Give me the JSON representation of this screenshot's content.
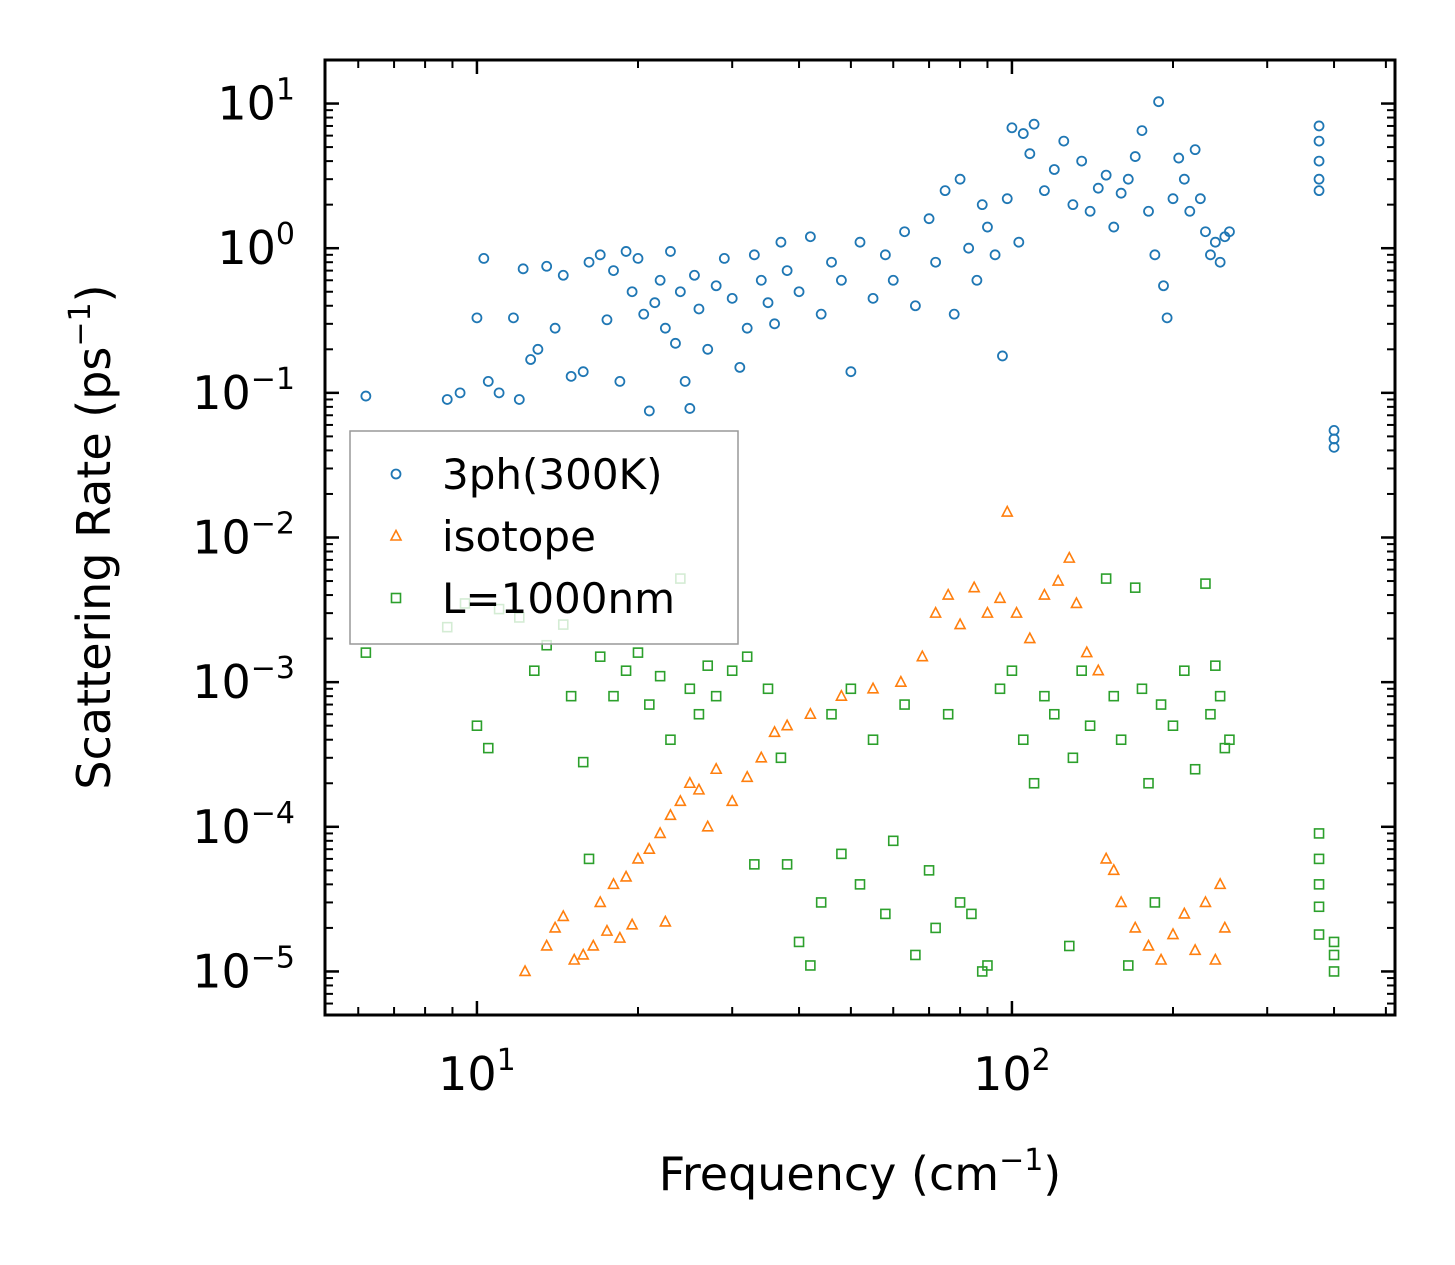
{
  "chart_data": {
    "type": "scatter",
    "title": "",
    "xlabel": "Frequency (cm",
    "xlabel_sup": "−1",
    "xlabel_close": ")",
    "ylabel": "Scattering Rate (ps",
    "ylabel_sup": "−1",
    "ylabel_close": ")",
    "xscale": "log",
    "yscale": "log",
    "xlim": [
      5.2,
      520
    ],
    "ylim": [
      5e-06,
      20
    ],
    "x_ticks": [
      {
        "value": 10,
        "base": "10",
        "exp": "1"
      },
      {
        "value": 100,
        "base": "10",
        "exp": "2"
      }
    ],
    "y_ticks": [
      {
        "value": 10,
        "base": "10",
        "exp": "1"
      },
      {
        "value": 1,
        "base": "10",
        "exp": "0"
      },
      {
        "value": 0.1,
        "base": "10",
        "exp": "−1"
      },
      {
        "value": 0.01,
        "base": "10",
        "exp": "−2"
      },
      {
        "value": 0.001,
        "base": "10",
        "exp": "−3"
      },
      {
        "value": 0.0001,
        "base": "10",
        "exp": "−4"
      },
      {
        "value": 1e-05,
        "base": "10",
        "exp": "−5"
      }
    ],
    "legend_position": "center-left",
    "series": [
      {
        "name": "3ph(300K)",
        "marker": "circle",
        "color": "#1f77b4",
        "points": [
          [
            6.2,
            0.095
          ],
          [
            8.8,
            0.09
          ],
          [
            9.3,
            0.1
          ],
          [
            10.0,
            0.33
          ],
          [
            10.5,
            0.12
          ],
          [
            11.0,
            0.1
          ],
          [
            12.0,
            0.09
          ],
          [
            10.3,
            0.85
          ],
          [
            11.7,
            0.33
          ],
          [
            12.2,
            0.72
          ],
          [
            12.6,
            0.17
          ],
          [
            13.0,
            0.2
          ],
          [
            13.5,
            0.75
          ],
          [
            14.0,
            0.28
          ],
          [
            14.5,
            0.65
          ],
          [
            15.0,
            0.13
          ],
          [
            15.8,
            0.14
          ],
          [
            16.2,
            0.8
          ],
          [
            17.0,
            0.9
          ],
          [
            17.5,
            0.32
          ],
          [
            18.0,
            0.7
          ],
          [
            18.5,
            0.12
          ],
          [
            19.0,
            0.95
          ],
          [
            19.5,
            0.5
          ],
          [
            20.0,
            0.85
          ],
          [
            20.5,
            0.35
          ],
          [
            21.0,
            0.075
          ],
          [
            21.5,
            0.42
          ],
          [
            22.0,
            0.6
          ],
          [
            22.5,
            0.28
          ],
          [
            23.0,
            0.95
          ],
          [
            23.5,
            0.22
          ],
          [
            24.0,
            0.5
          ],
          [
            24.5,
            0.12
          ],
          [
            25.0,
            0.078
          ],
          [
            25.5,
            0.65
          ],
          [
            26.0,
            0.38
          ],
          [
            27.0,
            0.2
          ],
          [
            28.0,
            0.55
          ],
          [
            29.0,
            0.85
          ],
          [
            30.0,
            0.45
          ],
          [
            31.0,
            0.15
          ],
          [
            32.0,
            0.28
          ],
          [
            33.0,
            0.9
          ],
          [
            34.0,
            0.6
          ],
          [
            35.0,
            0.42
          ],
          [
            36.0,
            0.3
          ],
          [
            37.0,
            1.1
          ],
          [
            38.0,
            0.7
          ],
          [
            40.0,
            0.5
          ],
          [
            42.0,
            1.2
          ],
          [
            44.0,
            0.35
          ],
          [
            46.0,
            0.8
          ],
          [
            48.0,
            0.6
          ],
          [
            50.0,
            0.14
          ],
          [
            52.0,
            1.1
          ],
          [
            55.0,
            0.45
          ],
          [
            58.0,
            0.9
          ],
          [
            60.0,
            0.6
          ],
          [
            63.0,
            1.3
          ],
          [
            66.0,
            0.4
          ],
          [
            70.0,
            1.6
          ],
          [
            72.0,
            0.8
          ],
          [
            75.0,
            2.5
          ],
          [
            78.0,
            0.35
          ],
          [
            80.0,
            3.0
          ],
          [
            83.0,
            1.0
          ],
          [
            86.0,
            0.6
          ],
          [
            88.0,
            2.0
          ],
          [
            90.0,
            1.4
          ],
          [
            93.0,
            0.9
          ],
          [
            96.0,
            0.18
          ],
          [
            98.0,
            2.2
          ],
          [
            100.0,
            6.8
          ],
          [
            103.0,
            1.1
          ],
          [
            105.0,
            6.2
          ],
          [
            108.0,
            4.5
          ],
          [
            110.0,
            7.2
          ],
          [
            115.0,
            2.5
          ],
          [
            120.0,
            3.5
          ],
          [
            125.0,
            5.5
          ],
          [
            130.0,
            2.0
          ],
          [
            135.0,
            4.0
          ],
          [
            140.0,
            1.8
          ],
          [
            145.0,
            2.6
          ],
          [
            150.0,
            3.2
          ],
          [
            155.0,
            1.4
          ],
          [
            160.0,
            2.4
          ],
          [
            165.0,
            3.0
          ],
          [
            170.0,
            4.3
          ],
          [
            175.0,
            6.5
          ],
          [
            180.0,
            1.8
          ],
          [
            185.0,
            0.9
          ],
          [
            188.0,
            10.3
          ],
          [
            192.0,
            0.55
          ],
          [
            195.0,
            0.33
          ],
          [
            200.0,
            2.2
          ],
          [
            205.0,
            4.2
          ],
          [
            210.0,
            3.0
          ],
          [
            215.0,
            1.8
          ],
          [
            220.0,
            4.8
          ],
          [
            225.0,
            2.2
          ],
          [
            230.0,
            1.3
          ],
          [
            235.0,
            0.9
          ],
          [
            240.0,
            1.1
          ],
          [
            245.0,
            0.8
          ],
          [
            250.0,
            1.2
          ],
          [
            255.0,
            1.3
          ],
          [
            375.0,
            7.0
          ],
          [
            375.0,
            5.5
          ],
          [
            375.0,
            4.0
          ],
          [
            375.0,
            3.0
          ],
          [
            375.0,
            2.5
          ],
          [
            400.0,
            0.055
          ],
          [
            400.0,
            0.048
          ],
          [
            400.0,
            0.042
          ]
        ]
      },
      {
        "name": "isotope",
        "marker": "triangle",
        "color": "#ff7f0e",
        "points": [
          [
            12.3,
            1e-05
          ],
          [
            13.5,
            1.5e-05
          ],
          [
            14.0,
            2e-05
          ],
          [
            14.5,
            2.4e-05
          ],
          [
            15.2,
            1.2e-05
          ],
          [
            15.8,
            1.3e-05
          ],
          [
            16.5,
            1.5e-05
          ],
          [
            17.0,
            3e-05
          ],
          [
            17.5,
            1.9e-05
          ],
          [
            18.0,
            4e-05
          ],
          [
            18.5,
            1.7e-05
          ],
          [
            19.0,
            4.5e-05
          ],
          [
            19.5,
            2.1e-05
          ],
          [
            20.0,
            6e-05
          ],
          [
            21.0,
            7e-05
          ],
          [
            22.0,
            9e-05
          ],
          [
            22.5,
            2.2e-05
          ],
          [
            23.0,
            0.00012
          ],
          [
            24.0,
            0.00015
          ],
          [
            25.0,
            0.0002
          ],
          [
            26.0,
            0.00018
          ],
          [
            27.0,
            0.0001
          ],
          [
            28.0,
            0.00025
          ],
          [
            30.0,
            0.00015
          ],
          [
            32.0,
            0.00022
          ],
          [
            34.0,
            0.0003
          ],
          [
            36.0,
            0.00045
          ],
          [
            38.0,
            0.0005
          ],
          [
            42.0,
            0.0006
          ],
          [
            48.0,
            0.0008
          ],
          [
            55.0,
            0.0009
          ],
          [
            62.0,
            0.001
          ],
          [
            68.0,
            0.0015
          ],
          [
            72.0,
            0.003
          ],
          [
            76.0,
            0.004
          ],
          [
            80.0,
            0.0025
          ],
          [
            85.0,
            0.0045
          ],
          [
            90.0,
            0.003
          ],
          [
            95.0,
            0.0038
          ],
          [
            98.0,
            0.015
          ],
          [
            102.0,
            0.003
          ],
          [
            108.0,
            0.002
          ],
          [
            115.0,
            0.004
          ],
          [
            122.0,
            0.005
          ],
          [
            128.0,
            0.0072
          ],
          [
            132.0,
            0.0035
          ],
          [
            138.0,
            0.0016
          ],
          [
            145.0,
            0.0012
          ],
          [
            150.0,
            6e-05
          ],
          [
            155.0,
            5e-05
          ],
          [
            160.0,
            3e-05
          ],
          [
            170.0,
            2e-05
          ],
          [
            180.0,
            1.5e-05
          ],
          [
            190.0,
            1.2e-05
          ],
          [
            200.0,
            1.8e-05
          ],
          [
            210.0,
            2.5e-05
          ],
          [
            220.0,
            1.4e-05
          ],
          [
            230.0,
            3e-05
          ],
          [
            240.0,
            1.2e-05
          ],
          [
            245.0,
            4e-05
          ],
          [
            250.0,
            2e-05
          ]
        ]
      },
      {
        "name": "L=1000nm",
        "marker": "square",
        "color": "#2ca02c",
        "points": [
          [
            6.2,
            0.0016
          ],
          [
            8.8,
            0.0024
          ],
          [
            9.5,
            0.0035
          ],
          [
            10.0,
            0.0005
          ],
          [
            10.5,
            0.00035
          ],
          [
            11.0,
            0.0032
          ],
          [
            12.0,
            0.0028
          ],
          [
            12.8,
            0.0012
          ],
          [
            13.5,
            0.0018
          ],
          [
            14.5,
            0.0025
          ],
          [
            15.0,
            0.0008
          ],
          [
            15.8,
            0.00028
          ],
          [
            16.2,
            6e-05
          ],
          [
            17.0,
            0.0015
          ],
          [
            18.0,
            0.0008
          ],
          [
            19.0,
            0.0012
          ],
          [
            20.0,
            0.0016
          ],
          [
            21.0,
            0.0007
          ],
          [
            22.0,
            0.0011
          ],
          [
            23.0,
            0.0004
          ],
          [
            24.0,
            0.0052
          ],
          [
            25.0,
            0.0009
          ],
          [
            26.0,
            0.0006
          ],
          [
            27.0,
            0.0013
          ],
          [
            28.0,
            0.0008
          ],
          [
            30.0,
            0.0012
          ],
          [
            32.0,
            0.0015
          ],
          [
            33.0,
            5.5e-05
          ],
          [
            35.0,
            0.0009
          ],
          [
            37.0,
            0.0003
          ],
          [
            38.0,
            5.5e-05
          ],
          [
            40.0,
            1.6e-05
          ],
          [
            42.0,
            1.1e-05
          ],
          [
            44.0,
            3e-05
          ],
          [
            46.0,
            0.0006
          ],
          [
            48.0,
            6.5e-05
          ],
          [
            50.0,
            0.0009
          ],
          [
            52.0,
            4e-05
          ],
          [
            55.0,
            0.0004
          ],
          [
            58.0,
            2.5e-05
          ],
          [
            60.0,
            8e-05
          ],
          [
            63.0,
            0.0007
          ],
          [
            66.0,
            1.3e-05
          ],
          [
            70.0,
            5e-05
          ],
          [
            72.0,
            2e-05
          ],
          [
            76.0,
            0.0006
          ],
          [
            80.0,
            3e-05
          ],
          [
            84.0,
            2.5e-05
          ],
          [
            88.0,
            1e-05
          ],
          [
            90.0,
            1.1e-05
          ],
          [
            95.0,
            0.0009
          ],
          [
            100.0,
            0.0012
          ],
          [
            105.0,
            0.0004
          ],
          [
            110.0,
            0.0002
          ],
          [
            115.0,
            0.0008
          ],
          [
            120.0,
            0.0006
          ],
          [
            128.0,
            1.5e-05
          ],
          [
            130.0,
            0.0003
          ],
          [
            135.0,
            0.0012
          ],
          [
            140.0,
            0.0005
          ],
          [
            150.0,
            0.0052
          ],
          [
            155.0,
            0.0008
          ],
          [
            160.0,
            0.0004
          ],
          [
            165.0,
            1.1e-05
          ],
          [
            170.0,
            0.0045
          ],
          [
            175.0,
            0.0009
          ],
          [
            180.0,
            0.0002
          ],
          [
            185.0,
            3e-05
          ],
          [
            190.0,
            0.0007
          ],
          [
            200.0,
            0.0005
          ],
          [
            210.0,
            0.0012
          ],
          [
            220.0,
            0.00025
          ],
          [
            230.0,
            0.0048
          ],
          [
            235.0,
            0.0006
          ],
          [
            240.0,
            0.0013
          ],
          [
            245.0,
            0.0008
          ],
          [
            250.0,
            0.00035
          ],
          [
            255.0,
            0.0004
          ],
          [
            375.0,
            9e-05
          ],
          [
            375.0,
            6e-05
          ],
          [
            375.0,
            4e-05
          ],
          [
            375.0,
            2.8e-05
          ],
          [
            375.0,
            1.8e-05
          ],
          [
            400.0,
            1.6e-05
          ],
          [
            400.0,
            1.3e-05
          ],
          [
            400.0,
            1e-05
          ]
        ]
      }
    ]
  }
}
